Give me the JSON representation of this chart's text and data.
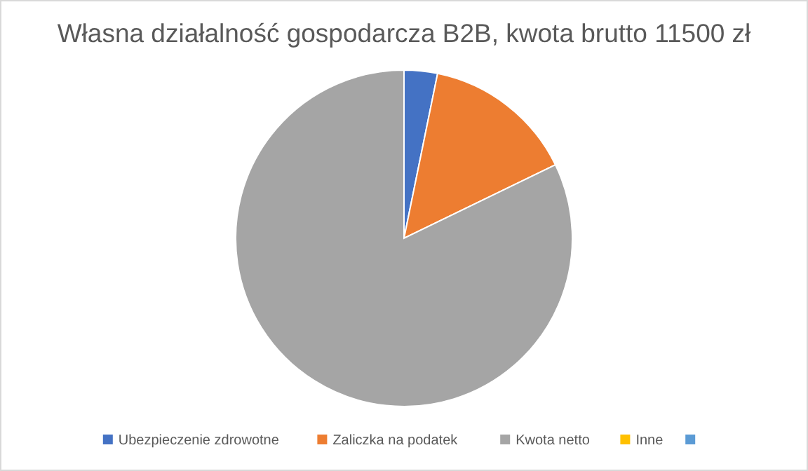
{
  "chart_data": {
    "type": "pie",
    "title": "Własna działalność gospodarcza B2B, kwota brutto 11500 zł",
    "categories": [
      "Ubezpieczenie zdrowotne",
      "Zaliczka na podatek",
      "Kwota netto",
      "Inne",
      null
    ],
    "values": [
      3.2,
      14.6,
      82.2,
      0,
      0
    ],
    "colors": [
      "#4472c4",
      "#ed7d31",
      "#a5a5a5",
      "#ffc000",
      "#5b9bd5"
    ],
    "legend": "bottom"
  }
}
